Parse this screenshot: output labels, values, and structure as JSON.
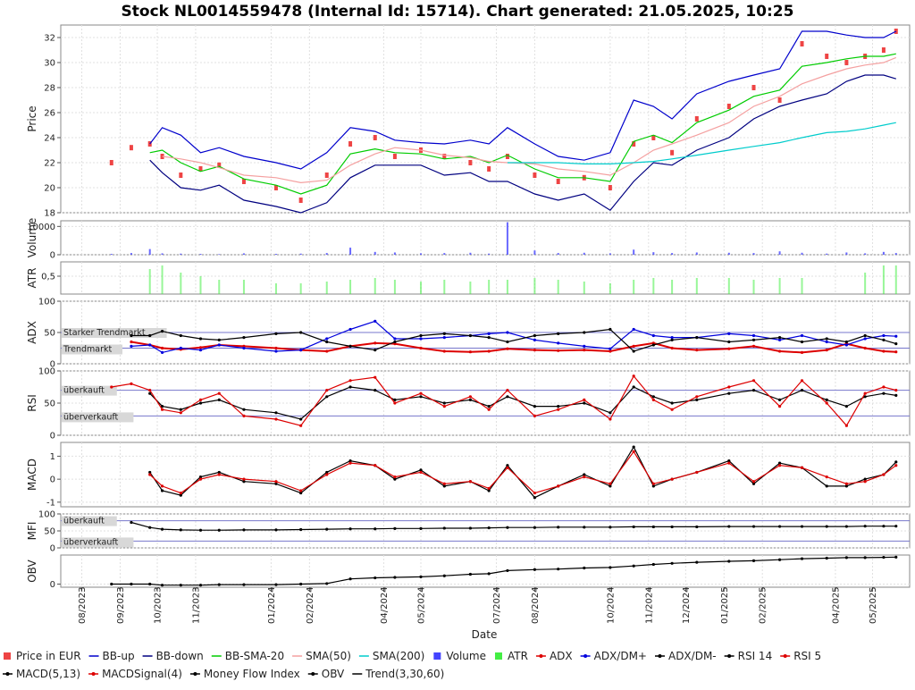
{
  "title": "Stock NL0014559478 (Internal Id: 15714). Chart generated: 21.05.2025, 10:25",
  "x_axis": {
    "label": "Date",
    "ticks": [
      "08/2023",
      "09/2023",
      "10/2023",
      "11/2023",
      "01/2024",
      "02/2024",
      "04/2024",
      "05/2024",
      "07/2024",
      "08/2024",
      "10/2024",
      "11/2024",
      "12/2024",
      "01/2025",
      "02/2025",
      "04/2025",
      "05/2025"
    ]
  },
  "panels": [
    {
      "id": "price",
      "ylabel": "Price",
      "ticks": [
        "32",
        "30",
        "28",
        "26",
        "24",
        "22",
        "20",
        "18"
      ]
    },
    {
      "id": "volume",
      "ylabel": "Volume",
      "ticks": [
        "10000",
        "0"
      ]
    },
    {
      "id": "atr",
      "ylabel": "ATR",
      "ticks": [
        "0,5"
      ]
    },
    {
      "id": "adx",
      "ylabel": "ADX",
      "ticks": [
        "100",
        "50",
        "0"
      ],
      "annotations": [
        "Starker Trendmarkt",
        "Trendmarkt"
      ]
    },
    {
      "id": "rsi",
      "ylabel": "RSI",
      "ticks": [
        "100",
        "50",
        "0"
      ],
      "annotations": [
        "überkauft",
        "überverkauft"
      ]
    },
    {
      "id": "macd",
      "ylabel": "MACD",
      "ticks": [
        "1",
        "0",
        "-1"
      ]
    },
    {
      "id": "mfi",
      "ylabel": "MFI",
      "ticks": [
        "100",
        "50",
        "0"
      ],
      "annotations": [
        "überkauft",
        "überverkauft"
      ]
    },
    {
      "id": "obv",
      "ylabel": "OBV",
      "ticks": [
        "0"
      ]
    }
  ],
  "legend": [
    {
      "label": "Price in EUR",
      "color": "#ee4444",
      "marker": "square"
    },
    {
      "label": "BB-up",
      "color": "#0000cc",
      "marker": "line"
    },
    {
      "label": "BB-down",
      "color": "#000080",
      "marker": "line"
    },
    {
      "label": "BB-SMA-20",
      "color": "#00cc00",
      "marker": "line"
    },
    {
      "label": "SMA(50)",
      "color": "#f4a0a0",
      "marker": "line"
    },
    {
      "label": "SMA(200)",
      "color": "#00cccc",
      "marker": "line"
    },
    {
      "label": "Volume",
      "color": "#4444ff",
      "marker": "square"
    },
    {
      "label": "ATR",
      "color": "#44ee44",
      "marker": "square"
    },
    {
      "label": "ADX",
      "color": "#dd0000",
      "marker": "dotline"
    },
    {
      "label": "ADX/DM+",
      "color": "#0000dd",
      "marker": "dotline"
    },
    {
      "label": "ADX/DM-",
      "color": "#000000",
      "marker": "dotline"
    },
    {
      "label": "RSI 14",
      "color": "#000000",
      "marker": "dotline"
    },
    {
      "label": "RSI 5",
      "color": "#dd0000",
      "marker": "dotline"
    },
    {
      "label": "MACD(5,13)",
      "color": "#000000",
      "marker": "dotline"
    },
    {
      "label": "MACDSignal(4)",
      "color": "#dd0000",
      "marker": "dotline"
    },
    {
      "label": "Money Flow Index",
      "color": "#000000",
      "marker": "dotline"
    },
    {
      "label": "OBV",
      "color": "#000000",
      "marker": "dotline"
    },
    {
      "label": "Trend(3,30,60)",
      "color": "#000000",
      "marker": "line"
    }
  ],
  "chart_data": {
    "type": "line",
    "title": "Stock NL0014559478 (Internal Id: 15714). Chart generated: 21.05.2025, 10:25",
    "xlabel": "Date",
    "x_ticks": [
      "08/2023",
      "09/2023",
      "10/2023",
      "11/2023",
      "01/2024",
      "02/2024",
      "04/2024",
      "05/2024",
      "07/2024",
      "08/2024",
      "10/2024",
      "11/2024",
      "12/2024",
      "01/2025",
      "02/2025",
      "04/2025",
      "05/2025"
    ],
    "x": [
      "2023-08-25",
      "2023-09-10",
      "2023-09-25",
      "2023-10-05",
      "2023-10-20",
      "2023-11-05",
      "2023-11-20",
      "2023-12-10",
      "2024-01-05",
      "2024-01-25",
      "2024-02-15",
      "2024-03-05",
      "2024-03-25",
      "2024-04-10",
      "2024-05-01",
      "2024-05-20",
      "2024-06-10",
      "2024-06-25",
      "2024-07-10",
      "2024-08-01",
      "2024-08-20",
      "2024-09-10",
      "2024-10-01",
      "2024-10-20",
      "2024-11-05",
      "2024-11-20",
      "2024-12-10",
      "2025-01-05",
      "2025-01-25",
      "2025-02-15",
      "2025-03-05",
      "2025-03-25",
      "2025-04-10",
      "2025-04-25",
      "2025-05-10",
      "2025-05-20"
    ],
    "series": [
      {
        "name": "Price in EUR",
        "panel": "price",
        "values": [
          22.0,
          23.2,
          23.5,
          22.5,
          21.0,
          21.5,
          21.8,
          20.5,
          20.0,
          19.0,
          21.0,
          23.5,
          24.0,
          22.5,
          23.0,
          22.5,
          22.0,
          21.5,
          22.5,
          21.0,
          20.5,
          20.8,
          20.0,
          23.5,
          24.0,
          22.8,
          25.5,
          26.5,
          28.0,
          27.0,
          31.5,
          30.5,
          30.0,
          30.5,
          31.0,
          32.5
        ]
      },
      {
        "name": "BB-up",
        "panel": "price",
        "values": [
          null,
          null,
          23.5,
          24.8,
          24.2,
          22.8,
          23.2,
          22.5,
          22.0,
          21.5,
          22.8,
          24.8,
          24.5,
          23.8,
          23.6,
          23.5,
          23.8,
          23.5,
          24.8,
          23.5,
          22.5,
          22.2,
          22.8,
          27.0,
          26.5,
          25.5,
          27.5,
          28.5,
          29.0,
          29.5,
          32.5,
          32.5,
          32.2,
          32.0,
          32.0,
          32.5
        ]
      },
      {
        "name": "BB-down",
        "panel": "price",
        "values": [
          null,
          null,
          22.2,
          21.2,
          20.0,
          19.8,
          20.2,
          19.0,
          18.5,
          18.0,
          18.8,
          20.8,
          21.8,
          21.8,
          21.8,
          21.0,
          21.2,
          20.5,
          20.5,
          19.5,
          19.0,
          19.5,
          18.2,
          20.5,
          22.0,
          21.8,
          23.0,
          24.0,
          25.5,
          26.5,
          27.0,
          27.5,
          28.5,
          29.0,
          29.0,
          28.7
        ]
      },
      {
        "name": "BB-SMA-20",
        "panel": "price",
        "values": [
          null,
          null,
          22.8,
          23.0,
          22.0,
          21.3,
          21.7,
          20.7,
          20.2,
          19.5,
          20.2,
          22.7,
          23.1,
          22.8,
          22.7,
          22.3,
          22.5,
          22.0,
          22.6,
          21.5,
          20.8,
          20.8,
          20.5,
          23.7,
          24.2,
          23.6,
          25.2,
          26.2,
          27.3,
          27.8,
          29.7,
          30.0,
          30.3,
          30.5,
          30.5,
          30.7
        ]
      },
      {
        "name": "SMA(50)",
        "panel": "price",
        "values": [
          null,
          null,
          null,
          22.5,
          22.3,
          22.0,
          21.6,
          21.0,
          20.8,
          20.4,
          20.6,
          21.8,
          22.7,
          23.2,
          23.0,
          22.6,
          22.4,
          22.1,
          22.0,
          21.9,
          21.5,
          21.3,
          21.0,
          22.0,
          23.0,
          23.5,
          24.2,
          25.2,
          26.5,
          27.3,
          28.3,
          29.0,
          29.5,
          29.8,
          30.0,
          30.4
        ]
      },
      {
        "name": "SMA(200)",
        "panel": "price",
        "values": [
          null,
          null,
          null,
          null,
          null,
          null,
          null,
          null,
          null,
          null,
          null,
          null,
          null,
          null,
          null,
          null,
          null,
          null,
          22.0,
          22.0,
          22.0,
          21.9,
          21.9,
          22.0,
          22.1,
          22.3,
          22.6,
          23.0,
          23.3,
          23.6,
          24.0,
          24.4,
          24.5,
          24.7,
          25.0,
          25.2
        ]
      },
      {
        "name": "Volume",
        "panel": "volume",
        "values": [
          300,
          600,
          2000,
          500,
          400,
          300,
          200,
          500,
          300,
          400,
          600,
          2500,
          1000,
          800,
          500,
          600,
          700,
          400,
          11500,
          1500,
          600,
          700,
          500,
          1800,
          900,
          600,
          800,
          700,
          600,
          1200,
          700,
          400,
          800,
          500,
          1000,
          600
        ]
      },
      {
        "name": "ATR",
        "panel": "atr",
        "values": [
          0.0,
          0.0,
          0.7,
          0.8,
          0.6,
          0.5,
          0.4,
          0.4,
          0.3,
          0.3,
          0.35,
          0.4,
          0.45,
          0.4,
          0.35,
          0.4,
          0.35,
          0.4,
          0.4,
          0.45,
          0.4,
          0.35,
          0.3,
          0.4,
          0.45,
          0.4,
          0.45,
          0.45,
          0.4,
          0.45,
          0.45,
          0.0,
          0.0,
          0.6,
          0.8,
          0.8
        ]
      },
      {
        "name": "ADX",
        "panel": "adx",
        "values": [
          null,
          35,
          30,
          25,
          23,
          26,
          30,
          28,
          25,
          22,
          20,
          28,
          33,
          32,
          25,
          20,
          19,
          20,
          24,
          22,
          21,
          22,
          20,
          28,
          33,
          25,
          22,
          24,
          28,
          20,
          18,
          22,
          32,
          25,
          20,
          19
        ]
      },
      {
        "name": "ADX/DM+",
        "panel": "adx",
        "values": [
          null,
          28,
          30,
          18,
          25,
          22,
          30,
          25,
          20,
          22,
          40,
          55,
          68,
          40,
          40,
          42,
          45,
          48,
          50,
          38,
          33,
          28,
          24,
          55,
          45,
          42,
          42,
          48,
          45,
          38,
          45,
          35,
          30,
          40,
          45,
          44
        ]
      },
      {
        "name": "ADX/DM-",
        "panel": "adx",
        "values": [
          null,
          45,
          45,
          52,
          45,
          40,
          38,
          42,
          48,
          50,
          35,
          28,
          22,
          35,
          45,
          48,
          45,
          42,
          35,
          45,
          48,
          50,
          55,
          20,
          30,
          38,
          42,
          35,
          38,
          42,
          35,
          40,
          35,
          45,
          38,
          32
        ]
      },
      {
        "name": "RSI 14",
        "panel": "rsi",
        "values": [
          null,
          null,
          65,
          45,
          40,
          50,
          55,
          40,
          35,
          25,
          60,
          75,
          70,
          55,
          60,
          50,
          55,
          45,
          60,
          45,
          45,
          50,
          35,
          75,
          60,
          50,
          55,
          65,
          70,
          55,
          70,
          55,
          45,
          60,
          65,
          62
        ]
      },
      {
        "name": "RSI 5",
        "panel": "rsi",
        "values": [
          75,
          80,
          70,
          40,
          35,
          55,
          65,
          30,
          25,
          15,
          70,
          85,
          90,
          50,
          65,
          45,
          60,
          40,
          70,
          30,
          40,
          55,
          25,
          92,
          55,
          40,
          60,
          75,
          85,
          45,
          85,
          50,
          15,
          65,
          75,
          70
        ]
      },
      {
        "name": "MACD(5,13)",
        "panel": "macd",
        "values": [
          null,
          null,
          0.3,
          -0.5,
          -0.7,
          0.1,
          0.3,
          -0.1,
          -0.2,
          -0.6,
          0.3,
          0.8,
          0.6,
          0.0,
          0.4,
          -0.3,
          -0.1,
          -0.5,
          0.6,
          -0.8,
          -0.3,
          0.2,
          -0.3,
          1.4,
          -0.3,
          0.0,
          0.3,
          0.8,
          -0.2,
          0.7,
          0.5,
          -0.3,
          -0.3,
          0.0,
          0.2,
          0.75
        ]
      },
      {
        "name": "MACDSignal(4)",
        "panel": "macd",
        "values": [
          null,
          null,
          0.2,
          -0.3,
          -0.6,
          0.0,
          0.2,
          0.0,
          -0.1,
          -0.5,
          0.2,
          0.7,
          0.6,
          0.1,
          0.3,
          -0.2,
          -0.1,
          -0.4,
          0.5,
          -0.6,
          -0.3,
          0.1,
          -0.2,
          1.2,
          -0.2,
          0.0,
          0.3,
          0.7,
          -0.1,
          0.6,
          0.5,
          0.1,
          -0.2,
          -0.1,
          0.2,
          0.6
        ]
      },
      {
        "name": "Money Flow Index",
        "panel": "mfi",
        "values": [
          null,
          75,
          60,
          55,
          53,
          52,
          52,
          53,
          53,
          54,
          55,
          56,
          56,
          57,
          57,
          58,
          58,
          59,
          60,
          60,
          61,
          61,
          61,
          62,
          62,
          62,
          62,
          63,
          63,
          63,
          63,
          63,
          63,
          64,
          64,
          64
        ]
      },
      {
        "name": "OBV",
        "panel": "obv",
        "values": [
          0,
          0,
          0,
          -1000,
          -1000,
          -1000,
          -500,
          -500,
          -500,
          0,
          500,
          5000,
          6000,
          6500,
          7000,
          8000,
          9500,
          10000,
          13000,
          14000,
          14500,
          15500,
          16000,
          17500,
          19000,
          20000,
          21000,
          22000,
          22500,
          23500,
          24500,
          25000,
          25500,
          25500,
          25800,
          26000
        ]
      }
    ],
    "ylim": {
      "price": [
        18,
        33
      ],
      "volume": [
        0,
        12000
      ],
      "atr": [
        0,
        0.9
      ],
      "adx": [
        0,
        100
      ],
      "rsi": [
        0,
        100
      ],
      "macd": [
        -1.2,
        1.6
      ],
      "mfi": [
        0,
        100
      ],
      "obv": [
        -3000,
        28000
      ]
    },
    "reference_lines": {
      "adx": [
        50,
        25
      ],
      "rsi": [
        70,
        30
      ],
      "mfi": [
        80,
        20
      ]
    },
    "grid": true,
    "legend_position": "bottom"
  }
}
